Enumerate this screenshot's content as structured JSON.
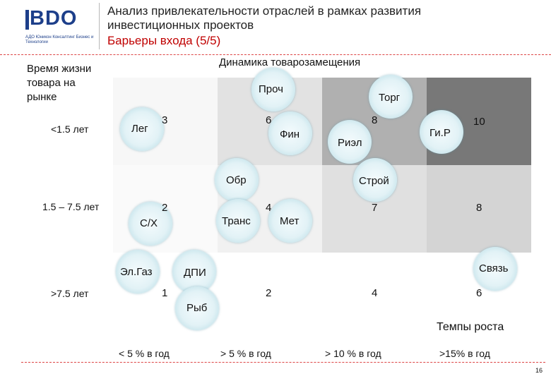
{
  "header": {
    "logo_text": "BDO",
    "logo_subtitle": "АДО Юникон Консалтинг Бизнес и Технологии",
    "title_line1": "Анализ привлекательности отраслей в рамках развития",
    "title_line2": "инвестиционных проектов",
    "subtitle": "Барьеры входа (5/5)"
  },
  "axes": {
    "y_title_line1": "Время жизни",
    "y_title_line2": "товара на",
    "y_title_line3": "рынке",
    "top_title": "Динамика товарозамещения",
    "x_title": "Темпы роста"
  },
  "rows": [
    "<1.5 лет",
    "1.5 – 7.5 лет",
    ">7.5 лет"
  ],
  "columns": [
    "< 5 % в год",
    "> 5 % в год",
    "> 10 % в год",
    ">15% в год"
  ],
  "cell_scores": {
    "r1": [
      "3",
      "6",
      "8",
      "10"
    ],
    "r2": [
      "2",
      "4",
      "7",
      "8"
    ],
    "r3": [
      "1",
      "2",
      "4",
      "6"
    ]
  },
  "cell_colors": {
    "r1": [
      "#f7f7f7",
      "#e2e2e2",
      "#b0b0b0",
      "#787878"
    ],
    "r2": [
      "#fafafa",
      "#f1f1f1",
      "#e0e0e0",
      "#d4d4d4"
    ],
    "r3": [
      "#ffffff",
      "#ffffff",
      "#ffffff",
      "#ffffff"
    ]
  },
  "bubbles": {
    "leg": "Лег",
    "proch": "Проч",
    "torg": "Торг",
    "fin": "Фин",
    "rizl": "Риэл",
    "gir": "Ги.Р",
    "obr": "Обр",
    "stroy": "Строй",
    "sx": "С/Х",
    "trans": "Транс",
    "met": "Мет",
    "elgaz": "Эл.Газ",
    "dpi": "ДПИ",
    "svyaz": "Связь",
    "ryb": "Рыб"
  },
  "page_number": "16"
}
